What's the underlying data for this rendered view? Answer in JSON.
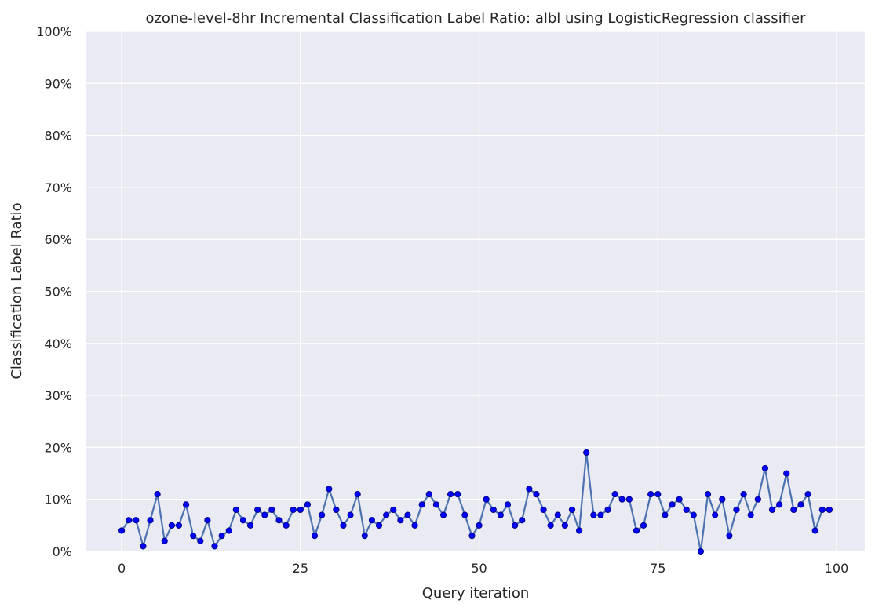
{
  "chart_data": {
    "type": "line",
    "title": "ozone-level-8hr Incremental Classification Label Ratio: albl using LogisticRegression classifier",
    "xlabel": "Query iteration",
    "ylabel": "Classification Label Ratio",
    "xlim": [
      -4.95,
      103.95
    ],
    "ylim": [
      0,
      100
    ],
    "x_ticks": [
      0,
      25,
      50,
      75,
      100
    ],
    "x_tick_labels": [
      "0",
      "25",
      "50",
      "75",
      "100"
    ],
    "y_ticks": [
      0,
      10,
      20,
      30,
      40,
      50,
      60,
      70,
      80,
      90,
      100
    ],
    "y_tick_labels": [
      "0%",
      "10%",
      "20%",
      "30%",
      "40%",
      "50%",
      "60%",
      "70%",
      "80%",
      "90%",
      "100%"
    ],
    "grid": true,
    "background_color": "#eaeaf2",
    "grid_color": "#ffffff",
    "line_color": "#4c72b0",
    "marker_color": "#0000ff",
    "marker_edge_color": "#00008b",
    "series": [
      {
        "x": [
          0,
          1,
          2,
          3,
          4,
          5,
          6,
          7,
          8,
          9,
          10,
          11,
          12,
          13,
          14,
          15,
          16,
          17,
          18,
          19,
          20,
          21,
          22,
          23,
          24,
          25,
          26,
          27,
          28,
          29,
          30,
          31,
          32,
          33,
          34,
          35,
          36,
          37,
          38,
          39,
          40,
          41,
          42,
          43,
          44,
          45,
          46,
          47,
          48,
          49,
          50,
          51,
          52,
          53,
          54,
          55,
          56,
          57,
          58,
          59,
          60,
          61,
          62,
          63,
          64,
          65,
          66,
          67,
          68,
          69,
          70,
          71,
          72,
          73,
          74,
          75,
          76,
          77,
          78,
          79,
          80,
          81,
          82,
          83,
          84,
          85,
          86,
          87,
          88,
          89,
          90,
          91,
          92,
          93,
          94,
          95,
          96,
          97,
          98,
          99
        ],
        "values": [
          4,
          6,
          6,
          1,
          6,
          11,
          2,
          5,
          5,
          9,
          3,
          2,
          6,
          1,
          3,
          4,
          8,
          6,
          5,
          8,
          7,
          8,
          6,
          5,
          8,
          8,
          9,
          3,
          7,
          12,
          8,
          5,
          7,
          11,
          3,
          6,
          5,
          7,
          8,
          6,
          7,
          5,
          9,
          11,
          9,
          7,
          11,
          11,
          7,
          3,
          5,
          10,
          8,
          7,
          9,
          5,
          6,
          12,
          11,
          8,
          5,
          7,
          5,
          8,
          4,
          19,
          7,
          7,
          8,
          11,
          10,
          10,
          4,
          5,
          11,
          11,
          7,
          9,
          10,
          8,
          7,
          0,
          11,
          7,
          10,
          3,
          8,
          11,
          7,
          10,
          16,
          8,
          9,
          15,
          8,
          9,
          11,
          4,
          8,
          8
        ]
      }
    ]
  }
}
